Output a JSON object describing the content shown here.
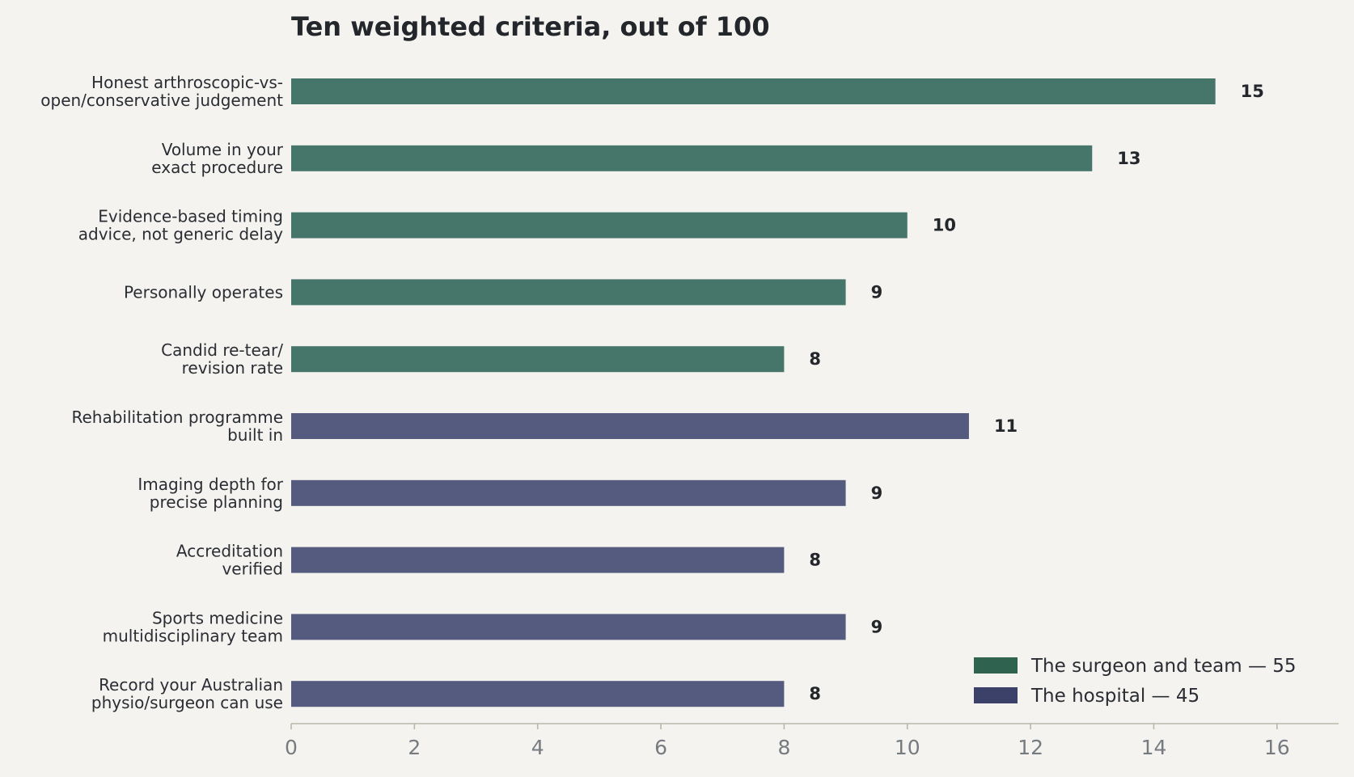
{
  "chart_data": {
    "type": "bar",
    "orientation": "horizontal",
    "title": "Ten weighted criteria, out of 100",
    "xlabel": "",
    "ylabel": "",
    "xlim": [
      0,
      17
    ],
    "x_ticks": [
      0,
      2,
      4,
      6,
      8,
      10,
      12,
      14,
      16
    ],
    "grid": false,
    "legend_position": "bottom-right",
    "categories": [
      [
        "Honest arthroscopic-vs-",
        "open/conservative judgement"
      ],
      [
        "Volume in your",
        "exact procedure"
      ],
      [
        "Evidence-based timing",
        "advice, not generic delay"
      ],
      [
        "Personally operates"
      ],
      [
        "Candid re-tear/",
        "revision rate"
      ],
      [
        "Rehabilitation programme",
        "built in"
      ],
      [
        "Imaging depth for",
        "precise planning"
      ],
      [
        "Accreditation",
        "verified"
      ],
      [
        "Sports medicine",
        "multidisciplinary team"
      ],
      [
        "Record your Australian",
        "physio/surgeon can use"
      ]
    ],
    "values": [
      15,
      13,
      10,
      9,
      8,
      11,
      9,
      8,
      9,
      8
    ],
    "value_labels": [
      "15",
      "13",
      "10",
      "9",
      "8",
      "11",
      "9",
      "8",
      "9",
      "8"
    ],
    "groups": [
      0,
      0,
      0,
      0,
      0,
      1,
      1,
      1,
      1,
      1
    ],
    "series": [
      {
        "name": "The surgeon and team — 55",
        "color": "#2f6350",
        "bar_color": "#46756a"
      },
      {
        "name": "The hospital — 45",
        "color": "#3c4169",
        "bar_color": "#545b7e"
      }
    ],
    "axis_color": "#b5b9a8"
  }
}
